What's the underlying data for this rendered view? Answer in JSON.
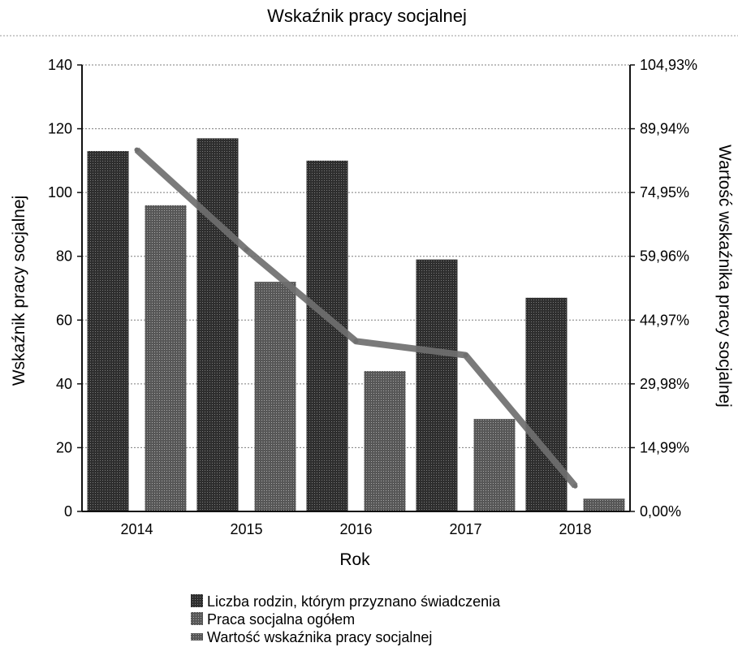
{
  "chart_data": {
    "type": "bar",
    "title": "Wskaźnik pracy socjalnej",
    "xlabel": "Rok",
    "ylabel": "Wskaźnik pracy socjalnej",
    "y2label": "Wartość wskaźnika pracy socjalnej",
    "categories": [
      "2014",
      "2015",
      "2016",
      "2017",
      "2018"
    ],
    "ylim": [
      0,
      140
    ],
    "yticks": [
      "0",
      "20",
      "40",
      "60",
      "80",
      "100",
      "120",
      "140"
    ],
    "y2lim": [
      0,
      104.93
    ],
    "y2ticks": [
      "0,00%",
      "14,99%",
      "29,98%",
      "44,97%",
      "59,96%",
      "74,95%",
      "89,94%",
      "104,93%"
    ],
    "grid": true,
    "legend_position": "bottom",
    "series": [
      {
        "name": "Liczba rodzin, którym przyznano świadczenia",
        "kind": "bar",
        "axis": "left",
        "color": "#3a3a3a",
        "values": [
          113,
          117,
          110,
          79,
          67
        ]
      },
      {
        "name": "Praca socjalna ogółem",
        "kind": "bar",
        "axis": "left",
        "color": "#5e5e5e",
        "values": [
          96,
          72,
          44,
          29,
          4
        ]
      },
      {
        "name": "Wartość wskaźnika pracy socjalnej",
        "kind": "line",
        "axis": "right",
        "color": "#6f6f6f",
        "values": [
          84.96,
          61.54,
          40.0,
          36.71,
          5.97
        ]
      }
    ]
  }
}
